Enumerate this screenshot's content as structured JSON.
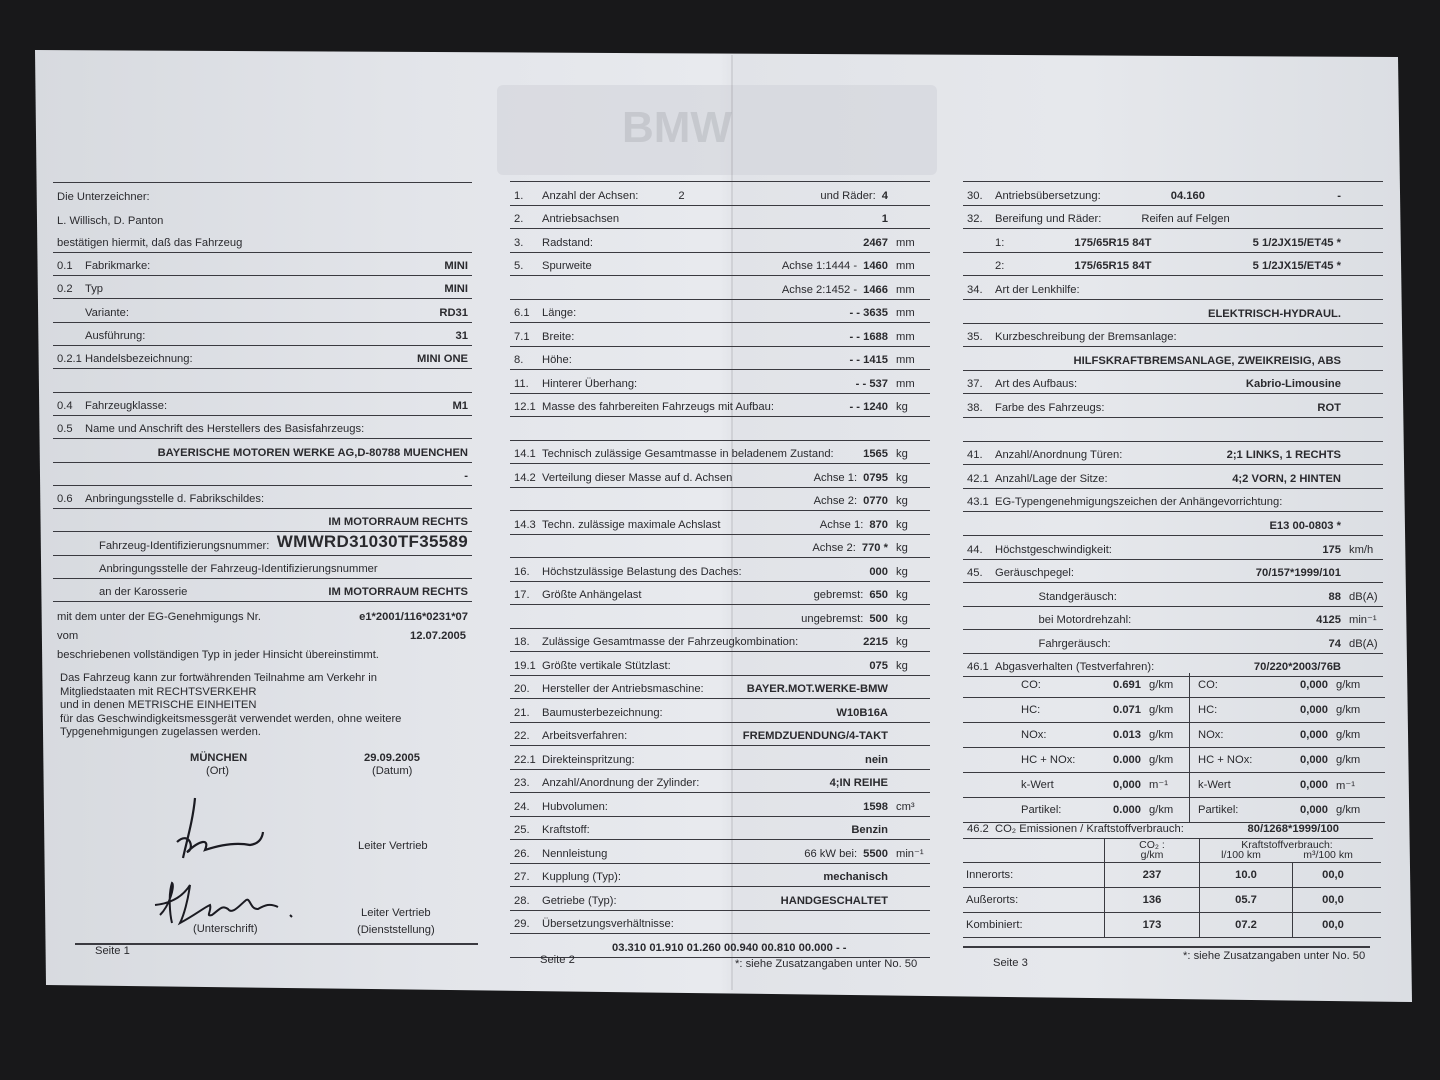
{
  "watermark": "BMW",
  "page1": {
    "rows": [
      {
        "l": "Die Unterzeichner:"
      },
      {
        "l": "L. Willisch, D. Panton"
      },
      {
        "l": "bestätigen hiermit, daß das Fahrzeug"
      },
      {
        "n": "0.1",
        "l": "Fabrikmarke:",
        "v": "MINI"
      },
      {
        "n": "0.2",
        "l": "Typ",
        "v": "MINI"
      },
      {
        "n": "",
        "l": "Variante:",
        "v": "RD31"
      },
      {
        "n": "",
        "l": "Ausführung:",
        "v": "31"
      },
      {
        "n": "0.2.1",
        "l": "Handelsbezeichnung:",
        "v": "MINI ONE"
      },
      {},
      {
        "n": "0.4",
        "l": "Fahrzeugklasse:",
        "v": "M1"
      },
      {
        "n": "0.5",
        "l": "Name und Anschrift des Herstellers des Basisfahrzeugs:"
      },
      {
        "v": "BAYERISCHE MOTOREN WERKE AG,D-80788 MUENCHEN"
      },
      {
        "v": "-"
      },
      {
        "n": "0.6",
        "l": "Anbringungsstelle d. Fabrikschildes:"
      },
      {
        "v": "IM MOTORRAUM RECHTS"
      },
      {
        "n": "",
        "l": "Fahrzeug-Identifizierungsnummer:",
        "v": "WMWRD31030TF35589"
      },
      {
        "n": "",
        "l": "Anbringungsstelle der Fahrzeug-Identifizierungsnummer"
      },
      {
        "n": "",
        "l": "an der Karosserie",
        "v": "IM MOTORRAUM RECHTS"
      },
      {
        "l": "mit dem unter der EG-Genehmigungs Nr.",
        "v": "e1*2001/116*0231*07"
      }
    ],
    "vom_label": "vom",
    "vom_date": "12.07.2005",
    "conformity": "beschriebenen vollständigen Typ in jeder Hinsicht übereinstimmt.",
    "paragraph": [
      "Das Fahrzeug kann zur fortwährenden Teilnahme am Verkehr in",
      "Mitgliedstaaten mit RECHTSVERKEHR",
      "und in denen METRISCHE EINHEITEN",
      "für das Geschwindigkeitsmessgerät verwendet werden, ohne weitere",
      "Typgenehmigungen zugelassen werden."
    ],
    "place": "MÜNCHEN",
    "place_label": "(Ort)",
    "date": "29.09.2005",
    "date_label": "(Datum)",
    "role1": "Leiter Vertrieb",
    "role2": "Leiter Vertrieb",
    "signature_label": "(Unterschrift)",
    "position_label": "(Dienststellung)",
    "footer": "Seite 1"
  },
  "page2": {
    "rows": [
      {
        "n": "1.",
        "l": "Anzahl der Achsen:",
        "a": "2",
        "m": "und Räder:",
        "v": "4",
        "u": ""
      },
      {
        "n": "2.",
        "l": "Antriebsachsen",
        "v": "1",
        "u": ""
      },
      {
        "n": "3.",
        "l": "Radstand:",
        "v": "2467",
        "u": "mm"
      },
      {
        "n": "5.",
        "l": "Spurweite",
        "m": "Achse 1:1444  -",
        "v": "1460",
        "u": "mm"
      },
      {
        "n": "",
        "l": "",
        "m": "Achse 2:1452  -",
        "v": "1466",
        "u": "mm"
      },
      {
        "n": "6.1",
        "l": "Länge:",
        "v": "- -  3635",
        "u": "mm"
      },
      {
        "n": "7.1",
        "l": "Breite:",
        "v": "- -  1688",
        "u": "mm"
      },
      {
        "n": "8.",
        "l": "Höhe:",
        "v": "- -  1415",
        "u": "mm"
      },
      {
        "n": "11.",
        "l": "Hinterer Überhang:",
        "v": "- -  537",
        "u": "mm"
      },
      {
        "n": "12.1",
        "l": "Masse des fahrbereiten Fahrzeugs mit Aufbau:",
        "v": "- -  1240",
        "u": "kg"
      },
      {},
      {
        "n": "14.1",
        "l": "Technisch zulässige Gesamtmasse in beladenem Zustand:",
        "v": "1565",
        "u": "kg"
      },
      {
        "n": "14.2",
        "l": "Verteilung dieser Masse auf d. Achsen",
        "m": "Achse 1:",
        "v": "0795",
        "u": "kg"
      },
      {
        "n": "",
        "l": "",
        "m": "Achse 2:",
        "v": "0770",
        "u": "kg"
      },
      {
        "n": "14.3",
        "l": "Techn. zulässige maximale Achslast",
        "m": "Achse 1:",
        "v": "870",
        "u": "kg"
      },
      {
        "n": "",
        "l": "",
        "m": "Achse 2:",
        "v": "770 *",
        "u": "kg"
      },
      {
        "n": "16.",
        "l": "Höchstzulässige Belastung des Daches:",
        "v": "000",
        "u": "kg"
      },
      {
        "n": "17.",
        "l": "Größte Anhängelast",
        "m": "gebremst:",
        "v": "650",
        "u": "kg"
      },
      {
        "n": "",
        "l": "",
        "m": "ungebremst:",
        "v": "500",
        "u": "kg"
      },
      {
        "n": "18.",
        "l": "Zulässige Gesamtmasse der Fahrzeugkombination:",
        "v": "2215",
        "u": "kg"
      },
      {
        "n": "19.1",
        "l": "Größte vertikale Stützlast:",
        "v": "075",
        "u": "kg"
      },
      {
        "n": "20.",
        "l": "Hersteller der Antriebsmaschine:",
        "v": "BAYER.MOT.WERKE-BMW",
        "u": ""
      },
      {
        "n": "21.",
        "l": "Baumusterbezeichnung:",
        "v": "W10B16A",
        "u": ""
      },
      {
        "n": "22.",
        "l": "Arbeitsverfahren:",
        "v": "FREMDZUENDUNG/4-TAKT",
        "u": ""
      },
      {
        "n": "22.1",
        "l": "Direkteinspritzung:",
        "v": "nein",
        "u": ""
      },
      {
        "n": "23.",
        "l": "Anzahl/Anordnung der Zylinder:",
        "v": "4;IN REIHE",
        "u": ""
      },
      {
        "n": "24.",
        "l": "Hubvolumen:",
        "v": "1598",
        "u": "cm³"
      },
      {
        "n": "25.",
        "l": "Kraftstoff:",
        "v": "Benzin",
        "u": ""
      },
      {
        "n": "26.",
        "l": "Nennleistung",
        "m": "66    kW bei:",
        "v": "5500",
        "u": "min⁻¹"
      },
      {
        "n": "27.",
        "l": "Kupplung (Typ):",
        "v": "mechanisch",
        "u": ""
      },
      {
        "n": "28.",
        "l": "Getriebe (Typ):",
        "v": "HANDGESCHALTET",
        "u": ""
      },
      {
        "n": "29.",
        "l": "Übersetzungsverhältnisse:"
      },
      {
        "n": "",
        "b": "03.310    01.910    01.260    00.940    00.810    00.000    -   -"
      }
    ],
    "footer": "Seite 2",
    "note": "*: siehe Zusatzangaben unter No. 50"
  },
  "page3": {
    "rows": [
      {
        "n": "30.",
        "l": "Antriebsübersetzung:",
        "b": "04.160",
        "v": "-",
        "u": ""
      },
      {
        "n": "32.",
        "l": "Bereifung und Räder:",
        "a": "Reifen auf Felgen"
      },
      {
        "n": "",
        "l": "1:",
        "b": "175/65R15 84T",
        "v": "5 1/2JX15/ET45  *",
        "u": ""
      },
      {
        "n": "",
        "l": "2:",
        "b": "175/65R15 84T",
        "v": "5 1/2JX15/ET45  *",
        "u": ""
      },
      {
        "n": "34.",
        "l": "Art der Lenkhilfe:"
      },
      {
        "v": "ELEKTRISCH-HYDRAUL.",
        "u": ""
      },
      {
        "n": "35.",
        "l": "Kurzbeschreibung der Bremsanlage:"
      },
      {
        "v": "HILFSKRAFTBREMSANLAGE, ZWEIKREISIG, ABS",
        "u": ""
      },
      {
        "n": "37.",
        "l": "Art des Aufbaus:",
        "v": "Kabrio-Limousine",
        "u": ""
      },
      {
        "n": "38.",
        "l": "Farbe des Fahrzeugs:",
        "v": "ROT",
        "u": ""
      },
      {},
      {
        "n": "41.",
        "l": "Anzahl/Anordnung Türen:",
        "v": "2;1 LINKS, 1 RECHTS",
        "u": ""
      },
      {
        "n": "42.1",
        "l": "Anzahl/Lage der Sitze:",
        "v": "4;2 VORN, 2 HINTEN",
        "u": ""
      },
      {
        "n": "43.1",
        "l": "EG-Typengenehmigungszeichen der Anhängevorrichtung:"
      },
      {
        "v": "E13 00-0803  *",
        "u": ""
      },
      {
        "n": "44.",
        "l": "Höchstgeschwindigkeit:",
        "v": "175",
        "u": "km/h"
      },
      {
        "n": "45.",
        "l": "Geräuschpegel:",
        "v": "70/157*1999/101",
        "u": ""
      },
      {
        "n": "",
        "l": "              Standgeräusch:",
        "v": "88",
        "u": "dB(A)"
      },
      {
        "n": "",
        "l": "              bei Motordrehzahl:",
        "v": "4125",
        "u": "min⁻¹"
      },
      {
        "n": "",
        "l": "              Fahrgeräusch:",
        "v": "74",
        "u": "dB(A)"
      },
      {
        "n": "46.1",
        "l": "Abgasverhalten (Testverfahren):",
        "v": "70/220*2003/76B",
        "u": ""
      }
    ],
    "emissions": [
      {
        "k": "CO:",
        "v": "0.691",
        "u": "g/km",
        "k2": "CO:",
        "v2": "0,000",
        "u2": "g/km"
      },
      {
        "k": "HC:",
        "v": "0.071",
        "u": "g/km",
        "k2": "HC:",
        "v2": "0,000",
        "u2": "g/km"
      },
      {
        "k": "NOx:",
        "v": "0.013",
        "u": "g/km",
        "k2": "NOx:",
        "v2": "0,000",
        "u2": "g/km"
      },
      {
        "k": "HC + NOx:",
        "v": "0.000",
        "u": "g/km",
        "k2": "HC + NOx:",
        "v2": "0,000",
        "u2": "g/km"
      },
      {
        "k": "k-Wert",
        "v": "0,000",
        "u": "m⁻¹",
        "k2": "k-Wert",
        "v2": "0,000",
        "u2": "m⁻¹"
      },
      {
        "k": "Partikel:",
        "v": "0.000",
        "u": "g/km",
        "k2": "Partikel:",
        "v2": "0,000",
        "u2": "g/km"
      }
    ],
    "co2_row": {
      "n": "46.2",
      "l": "CO₂ Emissionen / Kraftstoffverbrauch:",
      "v": "80/1268*1999/100"
    },
    "co2_table": {
      "h_co2": "CO₂ :",
      "h_co2_unit": "g/km",
      "h_fuel": "Kraftstoffverbrauch:",
      "h_l": "l/100 km",
      "h_m3": "m³/100 km",
      "rows": [
        {
          "k": "Innerorts:",
          "co2": "237",
          "l": "10.0",
          "m3": "00,0"
        },
        {
          "k": "Außerorts:",
          "co2": "136",
          "l": "05.7",
          "m3": "00,0"
        },
        {
          "k": "Kombiniert:",
          "co2": "173",
          "l": "07.2",
          "m3": "00,0"
        }
      ]
    },
    "footer": "Seite 3",
    "note": "*: siehe Zusatzangaben unter No. 50"
  }
}
